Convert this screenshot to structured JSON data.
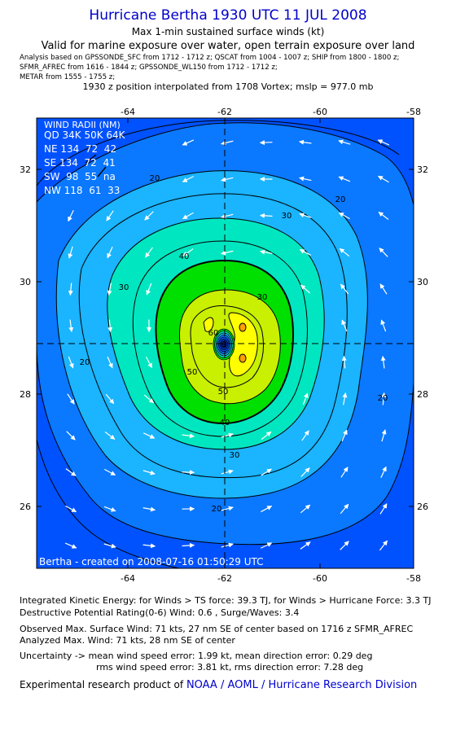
{
  "header": {
    "title": "Hurricane Bertha 1930 UTC 11 JUL 2008",
    "subtitle1": "Max 1-min sustained surface winds (kt)",
    "subtitle2": "Valid for marine exposure over water, open terrain exposure over land",
    "analysis_lines": [
      "Analysis based on  GPSSONDE_SFC from 1712 - 1712 z;  QSCAT from 1004 - 1007 z;  SHIP from 1800 - 1800 z;",
      "SFMR_AFREC from 1616 - 1844 z;  GPSSONDE_WL150 from 1712 - 1712 z;",
      "METAR from 1555 - 1755 z;"
    ],
    "position_note": "1930 z position interpolated from 1708 Vortex; mslp = 977.0 mb"
  },
  "map": {
    "lon_ticks": [
      "-64",
      "-62",
      "-60",
      "-58"
    ],
    "lat_ticks": [
      "32",
      "30",
      "28",
      "26"
    ],
    "contour_labels": [
      "20",
      "20",
      "20",
      "20",
      "20",
      "30",
      "30",
      "30",
      "30",
      "40",
      "40",
      "50",
      "50",
      "60"
    ],
    "credit": "Bertha - created on 2008-07-16 01:50:29 UTC",
    "wind_radii": {
      "title": "WIND RADII (NM)",
      "header": "QD 34K 50K 64K",
      "rows": [
        "NE 134  72  42",
        "SE 134  72  41",
        "SW  98  55  na",
        "NW 118  61  33"
      ]
    },
    "colors": {
      "ocean_blue": "#0052ff",
      "contour_20": "#0a78ff",
      "contour_30": "#1ab4ff",
      "contour_40": "#00e6c0",
      "contour_50": "#00e000",
      "contour_60": "#c8f000",
      "contour_70": "#ffff00",
      "max": "#ffa000",
      "center": "#00137a"
    }
  },
  "footer": {
    "ike": "Integrated Kinetic Energy:  for Winds > TS force: 39.3 TJ,  for Winds > Hurricane Force: 3.3 TJ",
    "dpr": "Destructive Potential Rating(0-6)   Wind: 0.6 , Surge/Waves: 3.4",
    "obs_max": "Observed Max. Surface Wind: 71 kts, 27 nm SE of center based on 1716 z SFMR_AFREC",
    "analyzed_max": "Analyzed Max. Wind: 71 kts, 28 nm SE of center",
    "uncertainty1": "Uncertainty -> mean wind speed error: 1.99 kt,   mean direction error: 0.29 deg",
    "uncertainty2": "rms wind speed error: 3.81 kt,   rms direction error: 7.28 deg",
    "product_prefix": "Experimental research product of",
    "product_link": "NOAA / AOML / Hurricane Research Division"
  }
}
